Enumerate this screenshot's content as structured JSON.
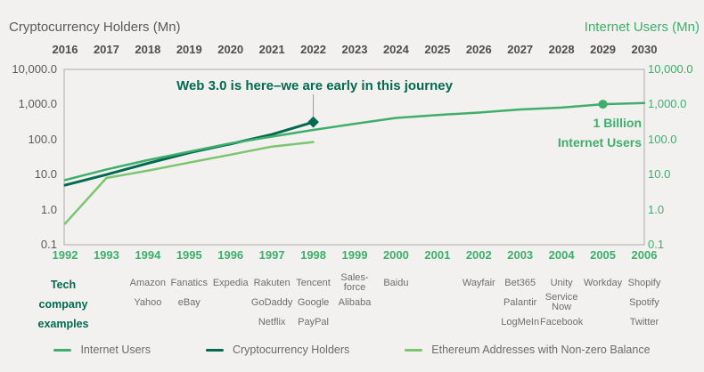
{
  "titles": {
    "left": "Cryptocurrency Holders (Mn)",
    "right": "Internet Users (Mn)"
  },
  "axes": {
    "top_years": [
      "2016",
      "2017",
      "2018",
      "2019",
      "2020",
      "2021",
      "2022",
      "2023",
      "2024",
      "2025",
      "2026",
      "2027",
      "2028",
      "2029",
      "2030"
    ],
    "bottom_years": [
      "1992",
      "1993",
      "1994",
      "1995",
      "1996",
      "1997",
      "1998",
      "1999",
      "2000",
      "2001",
      "2002",
      "2003",
      "2004",
      "2005",
      "2006"
    ],
    "y_ticks": [
      "10,000.0",
      "1,000.0",
      "100.0",
      "10.0",
      "1.0",
      "0.1"
    ]
  },
  "annotations": {
    "web3": "Web 3.0 is here–we are early in this journey",
    "billion_line1": "1 Billion",
    "billion_line2": "Internet Users"
  },
  "tech_label": [
    "Tech",
    "company",
    "examples"
  ],
  "companies": [
    {
      "year": "1994",
      "col": 2,
      "rows": [
        "Amazon",
        "Yahoo",
        null
      ]
    },
    {
      "year": "1995",
      "col": 3,
      "rows": [
        "Fanatics",
        "eBay",
        null
      ]
    },
    {
      "year": "1996",
      "col": 4,
      "rows": [
        "Expedia",
        null,
        null
      ]
    },
    {
      "year": "1997",
      "col": 5,
      "rows": [
        "Rakuten",
        "GoDaddy",
        "Netflix"
      ]
    },
    {
      "year": "1998",
      "col": 6,
      "rows": [
        "Tencent",
        "Google",
        "PayPal"
      ]
    },
    {
      "year": "1999",
      "col": 7,
      "rows": [
        [
          "Sales-",
          "force"
        ],
        "Alibaba",
        null
      ]
    },
    {
      "year": "2000",
      "col": 8,
      "rows": [
        "Baidu",
        null,
        null
      ]
    },
    {
      "year": "2002",
      "col": 10,
      "rows": [
        "Wayfair",
        null,
        null
      ]
    },
    {
      "year": "2003",
      "col": 11,
      "rows": [
        "Bet365",
        "Palantir",
        "LogMeIn"
      ]
    },
    {
      "year": "2004",
      "col": 12,
      "rows": [
        "Unity",
        [
          "Service",
          "Now"
        ],
        "Facebook"
      ]
    },
    {
      "year": "2005",
      "col": 13,
      "rows": [
        "Workday",
        null,
        null
      ]
    },
    {
      "year": "2006",
      "col": 14,
      "rows": [
        "Shopify",
        "Spotify",
        "Twitter"
      ]
    }
  ],
  "legend": [
    {
      "label": "Internet Users",
      "color": "#3FAE6C"
    },
    {
      "label": "Cryptocurrency Holders",
      "color": "#01694E"
    },
    {
      "label": "Ethereum Addresses with Non-zero Balance",
      "color": "#7CC56F"
    }
  ],
  "colors": {
    "background": "#F2F1EF",
    "plot_border": "#ABABAB",
    "gray_text": "#5A5A5A",
    "year_gray": "#4D4D4D",
    "company_gray": "#6E6E6E",
    "green": "#3FAE6C",
    "dark_green": "#01694E",
    "light_green": "#7CC56F",
    "connector_gray": "#9A9A9A"
  },
  "chart_data": {
    "type": "line",
    "y_scale": "log",
    "y_range": [
      0.1,
      10000
    ],
    "grid": false,
    "top_axis_label": "Cryptocurrency Holders (Mn)",
    "right_axis_label": "Internet Users (Mn)",
    "top_axis_years": [
      2016,
      2017,
      2018,
      2019,
      2020,
      2021,
      2022,
      2023,
      2024,
      2025,
      2026,
      2027,
      2028,
      2029,
      2030
    ],
    "bottom_axis_years": [
      1992,
      1993,
      1994,
      1995,
      1996,
      1997,
      1998,
      1999,
      2000,
      2001,
      2002,
      2003,
      2004,
      2005,
      2006
    ],
    "series": [
      {
        "name": "Internet Users",
        "axis": "bottom",
        "color": "#3FAE6C",
        "years": [
          1992,
          1993,
          1994,
          1995,
          1996,
          1997,
          1998,
          1999,
          2000,
          2001,
          2002,
          2003,
          2004,
          2005,
          2006
        ],
        "values": [
          7,
          14,
          26,
          45,
          78,
          121,
          188,
          281,
          414,
          502,
          587,
          719,
          817,
          1018,
          1100
        ],
        "point_marker": {
          "year": 2005,
          "value": 1018,
          "label": "1 Billion Internet Users"
        }
      },
      {
        "name": "Cryptocurrency Holders",
        "axis": "top",
        "color": "#01694E",
        "years": [
          2016,
          2017,
          2018,
          2019,
          2020,
          2021,
          2022
        ],
        "values": [
          5,
          10,
          21,
          42,
          75,
          140,
          315
        ],
        "end_marker": "diamond",
        "end_annotation": "Web 3.0 is here–we are early in this journey"
      },
      {
        "name": "Ethereum Addresses with Non-zero Balance",
        "axis": "top",
        "color": "#7CC56F",
        "years": [
          2016,
          2017,
          2018,
          2019,
          2020,
          2021,
          2022
        ],
        "values": [
          0.4,
          8,
          13,
          22,
          37,
          63,
          85
        ]
      }
    ],
    "legend_position": "bottom"
  }
}
